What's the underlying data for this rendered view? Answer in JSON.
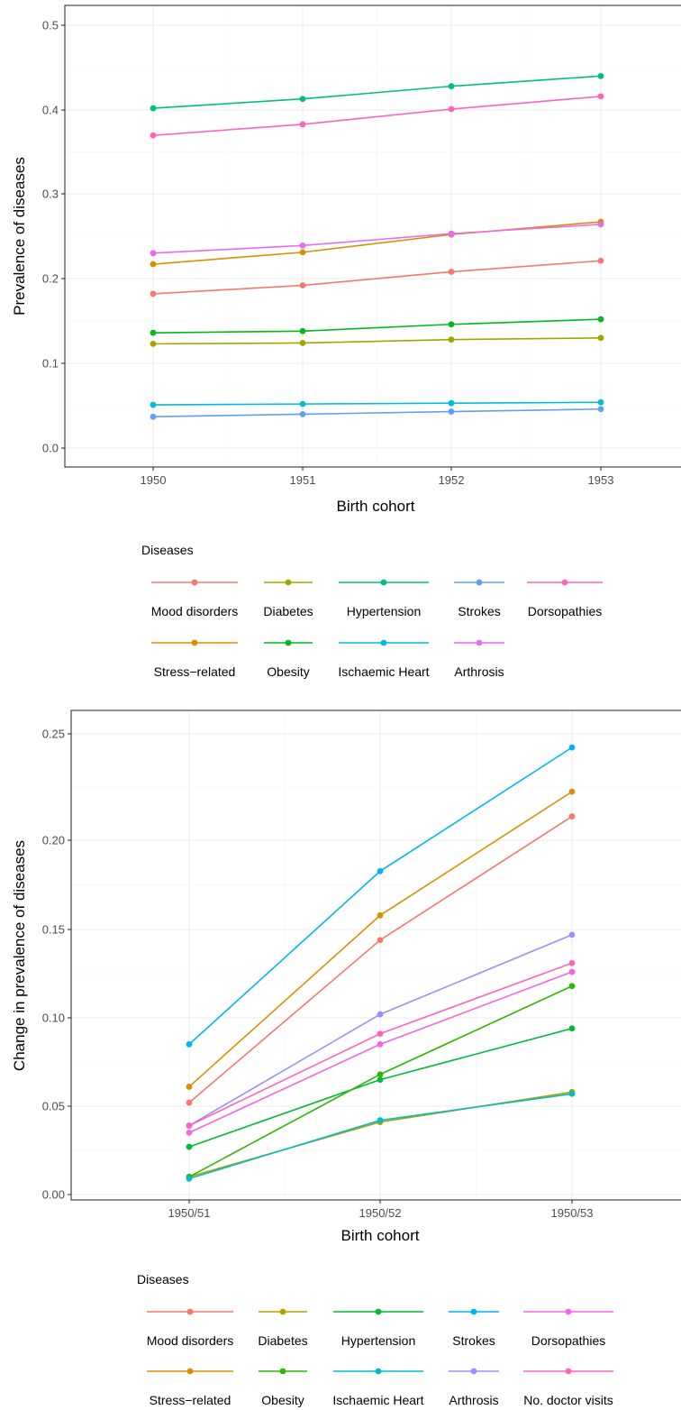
{
  "chart_data": [
    {
      "type": "line",
      "xlabel": "Birth cohort",
      "ylabel": "Prevalence of diseases",
      "categories": [
        "1950",
        "1951",
        "1952",
        "1953"
      ],
      "ylim": [
        -0.02,
        0.52
      ],
      "yticks": [
        "0.0",
        "0.1",
        "0.2",
        "0.3",
        "0.4",
        "0.5"
      ],
      "grid": true,
      "legend_title": "Diseases",
      "legend_position": "bottom",
      "series": [
        {
          "name": "Mood disorders",
          "color": "#F8766D",
          "values": [
            0.182,
            0.192,
            0.208,
            0.221
          ]
        },
        {
          "name": "Diabetes",
          "color": "#A3A500",
          "values": [
            0.123,
            0.124,
            0.128,
            0.13
          ]
        },
        {
          "name": "Hypertension",
          "color": "#00BF7D",
          "values": [
            0.401,
            0.412,
            0.427,
            0.439
          ]
        },
        {
          "name": "Strokes",
          "color": "#619CFF",
          "values": [
            0.037,
            0.04,
            0.043,
            0.046
          ]
        },
        {
          "name": "Dorsopathies",
          "color": "#FF62BC",
          "values": [
            0.369,
            0.382,
            0.4,
            0.415
          ]
        },
        {
          "name": "Stress−related",
          "color": "#D89000",
          "values": [
            0.217,
            0.231,
            0.252,
            0.267
          ]
        },
        {
          "name": "Obesity",
          "color": "#00B81F",
          "values": [
            0.136,
            0.138,
            0.146,
            0.152
          ]
        },
        {
          "name": "Ischaemic Heart",
          "color": "#00BCD8",
          "values": [
            0.051,
            0.052,
            0.053,
            0.054
          ]
        },
        {
          "name": "Arthrosis",
          "color": "#E76BF3",
          "values": [
            0.23,
            0.239,
            0.253,
            0.264
          ]
        }
      ]
    },
    {
      "type": "line",
      "xlabel": "Birth cohort",
      "ylabel": "Change in prevalence of diseases",
      "categories": [
        "1950/51",
        "1950/52",
        "1950/53"
      ],
      "ylim": [
        -0.003,
        0.262
      ],
      "yticks": [
        "0.00",
        "0.05",
        "0.10",
        "0.15",
        "0.20",
        "0.25"
      ],
      "grid": true,
      "legend_title": "Diseases",
      "legend_position": "bottom",
      "series": [
        {
          "name": "Mood disorders",
          "color": "#F8766D",
          "values": [
            0.052,
            0.144,
            0.214
          ]
        },
        {
          "name": "Diabetes",
          "color": "#B79F00",
          "values": [
            0.01,
            0.041,
            0.058
          ]
        },
        {
          "name": "Hypertension",
          "color": "#00BA38",
          "values": [
            0.027,
            0.065,
            0.094
          ]
        },
        {
          "name": "Strokes",
          "color": "#00B4F0",
          "values": [
            0.085,
            0.183,
            0.253
          ]
        },
        {
          "name": "Dorsopathies",
          "color": "#F564E3",
          "values": [
            0.035,
            0.085,
            0.126
          ]
        },
        {
          "name": "Stress−related",
          "color": "#D89000",
          "values": [
            0.061,
            0.158,
            0.228
          ]
        },
        {
          "name": "Obesity",
          "color": "#2FB600",
          "values": [
            0.01,
            0.068,
            0.118
          ]
        },
        {
          "name": "Ischaemic Heart",
          "color": "#00BFC4",
          "values": [
            0.009,
            0.042,
            0.057
          ]
        },
        {
          "name": "Arthrosis",
          "color": "#9590FF",
          "values": [
            0.039,
            0.102,
            0.147
          ]
        },
        {
          "name": "No. doctor visits",
          "color": "#FF62BC",
          "values": [
            0.039,
            0.091,
            0.131
          ]
        }
      ]
    }
  ]
}
